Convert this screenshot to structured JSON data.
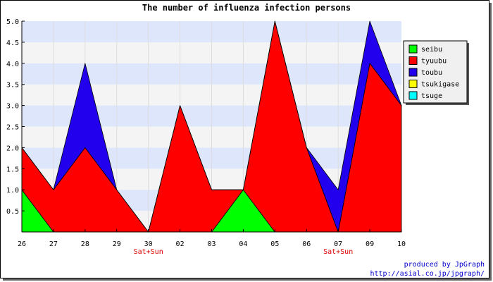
{
  "chart_data": {
    "type": "area",
    "title": "The number of influenza infection persons",
    "x": [
      "26",
      "27",
      "28",
      "29",
      "30",
      "02",
      "03",
      "04",
      "05",
      "06",
      "07",
      "09",
      "10"
    ],
    "weekend_labels": [
      {
        "index": 4,
        "text": "Sat+Sun"
      },
      {
        "index": 10,
        "text": "Sat+Sun"
      }
    ],
    "ylim": [
      0,
      5
    ],
    "yticks": [
      "0.5",
      "1.0",
      "1.5",
      "2.0",
      "2.5",
      "3.0",
      "3.5",
      "4.0",
      "4.5",
      "5.0"
    ],
    "stacked": true,
    "series": [
      {
        "name": "seibu",
        "color": "#00ff00",
        "values": [
          1,
          0,
          0,
          0,
          0,
          0,
          0,
          1,
          0,
          0,
          0,
          0,
          0
        ]
      },
      {
        "name": "tyuubu",
        "color": "#ff0000",
        "values": [
          1,
          1,
          2,
          1,
          0,
          3,
          1,
          0,
          5,
          2,
          0,
          4,
          3
        ]
      },
      {
        "name": "toubu",
        "color": "#2200ee",
        "values": [
          0,
          0,
          2,
          0,
          0,
          0,
          0,
          0,
          0,
          0,
          1,
          1,
          0
        ]
      },
      {
        "name": "tsukigase",
        "color": "#ffff00",
        "values": [
          0,
          0,
          0,
          0,
          0,
          0,
          0,
          0,
          0,
          0,
          0,
          0,
          0
        ]
      },
      {
        "name": "tsuge",
        "color": "#00ffff",
        "values": [
          0,
          0,
          0,
          0,
          0,
          0,
          0,
          0,
          0,
          0,
          0,
          0,
          0
        ]
      }
    ],
    "grid": true,
    "band_colors": [
      "#f4f4f4",
      "#dde6fb"
    ],
    "legend_position": "right"
  },
  "footer": {
    "line1": "produced by JpGraph",
    "line2": "http://asial.co.jp/jpgraph/"
  }
}
